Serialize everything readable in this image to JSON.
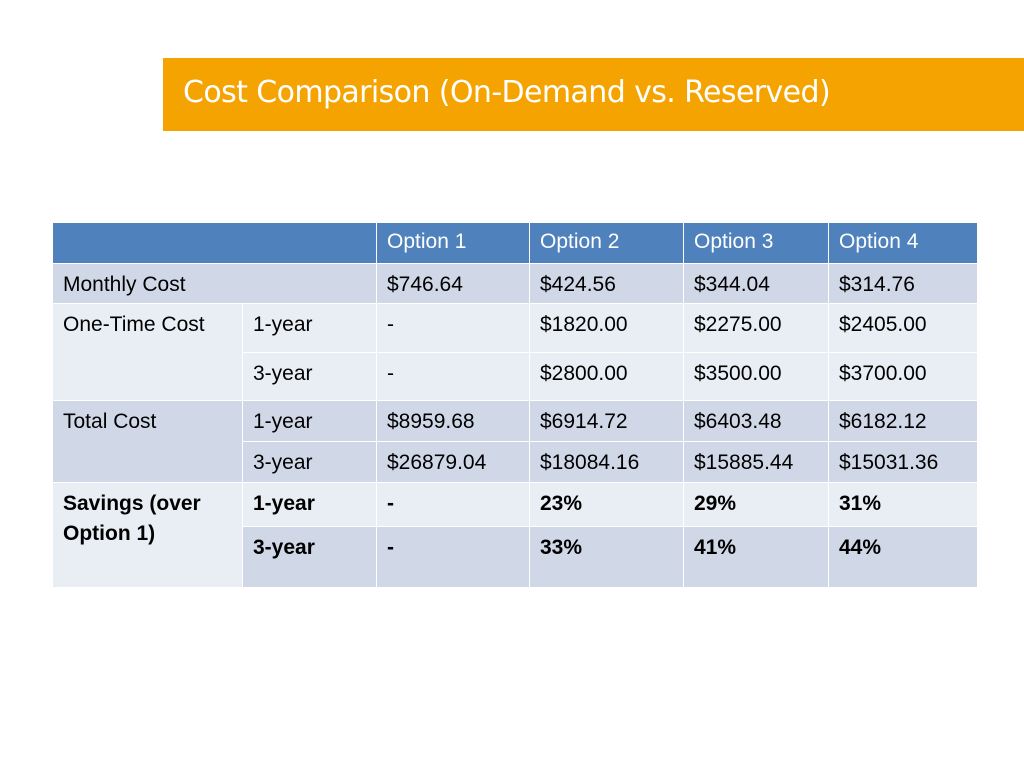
{
  "slide": {
    "title": "Cost Comparison (On-Demand vs. Reserved)"
  },
  "table": {
    "headers": [
      "",
      "Option 1",
      "Option 2",
      "Option 3",
      "Option 4"
    ],
    "monthly": {
      "label": "Monthly Cost",
      "values": [
        "$746.64",
        "$424.56",
        "$344.04",
        "$314.76"
      ]
    },
    "one_time": {
      "label": "One-Time Cost",
      "rows": [
        {
          "term": "1-year",
          "values": [
            "-",
            "$1820.00",
            "$2275.00",
            "$2405.00"
          ]
        },
        {
          "term": "3-year",
          "values": [
            "-",
            "$2800.00",
            "$3500.00",
            "$3700.00"
          ]
        }
      ]
    },
    "total": {
      "label": "Total Cost",
      "rows": [
        {
          "term": "1-year",
          "values": [
            "$8959.68",
            "$6914.72",
            "$6403.48",
            "$6182.12"
          ]
        },
        {
          "term": "3-year",
          "values": [
            "$26879.04",
            "$18084.16",
            "$15885.44",
            "$15031.36"
          ]
        }
      ]
    },
    "savings": {
      "label": "Savings (over Option 1)",
      "rows": [
        {
          "term": "1-year",
          "values": [
            "-",
            "23%",
            "29%",
            "31%"
          ]
        },
        {
          "term": "3-year",
          "values": [
            "-",
            "33%",
            "41%",
            "44%"
          ]
        }
      ]
    }
  },
  "colors": {
    "title_bar": "#f5a300",
    "header_bg": "#4f81bd",
    "row_dark": "#d0d8e8",
    "row_light": "#e9edf4"
  }
}
